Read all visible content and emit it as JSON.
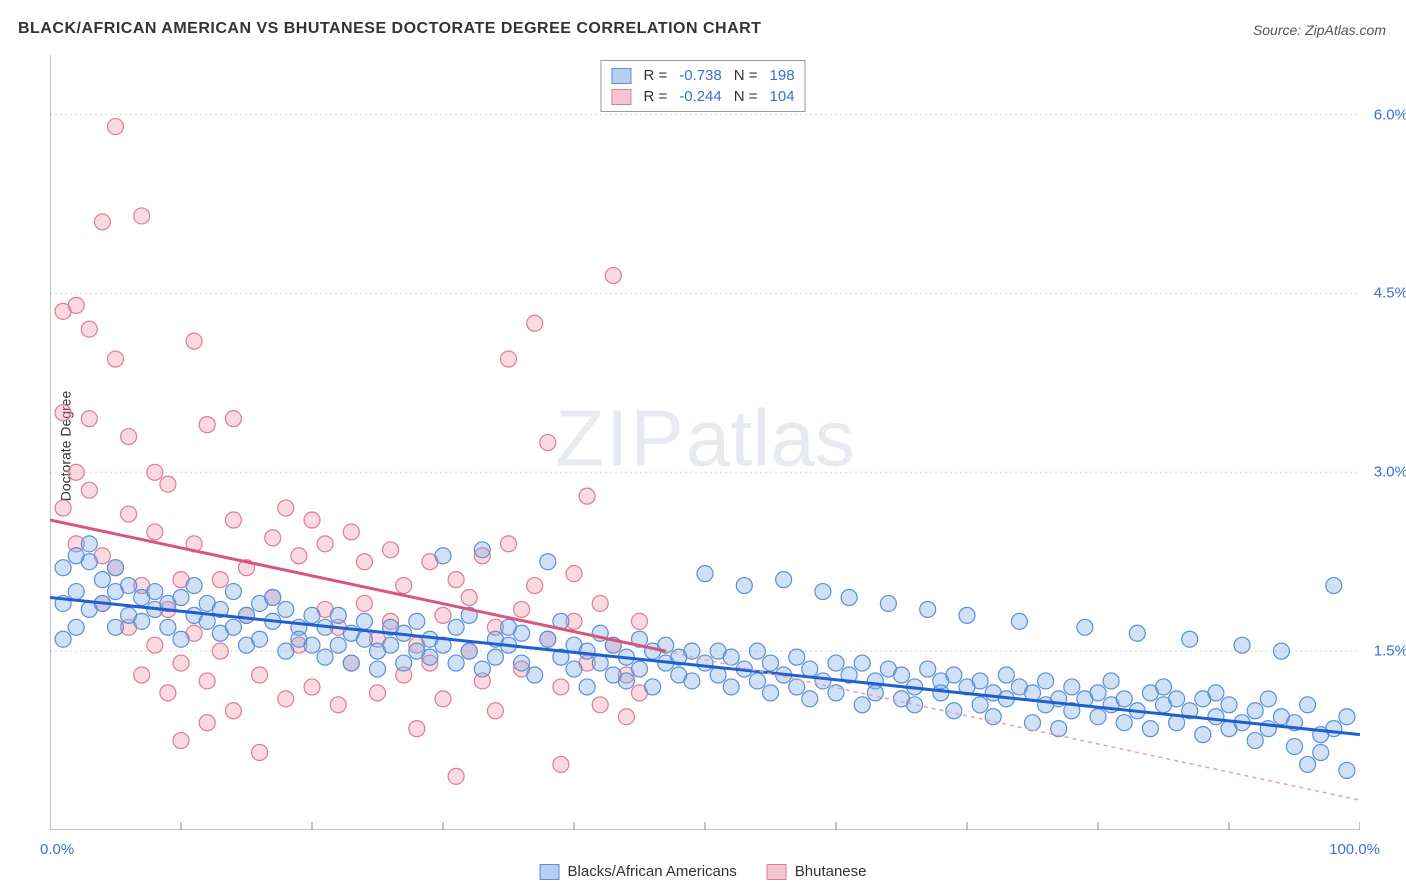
{
  "title": "BLACK/AFRICAN AMERICAN VS BHUTANESE DOCTORATE DEGREE CORRELATION CHART",
  "source": "Source: ZipAtlas.com",
  "ylabel": "Doctorate Degree",
  "watermark": {
    "part1": "ZIP",
    "part2": "atlas"
  },
  "chart": {
    "type": "scatter",
    "background_color": "#ffffff",
    "grid_color": "#d8d8d8",
    "axis_color": "#888888",
    "xlim": [
      0,
      100
    ],
    "ylim": [
      0,
      6.5
    ],
    "x_ticks": [
      0,
      10,
      20,
      30,
      40,
      50,
      60,
      70,
      80,
      90,
      100
    ],
    "x_tick_labels": {
      "0": "0.0%",
      "100": "100.0%"
    },
    "y_ticks": [
      1.5,
      3.0,
      4.5,
      6.0
    ],
    "y_tick_labels": [
      "1.5%",
      "3.0%",
      "4.5%",
      "6.0%"
    ],
    "marker_radius": 8,
    "marker_stroke_width": 1.2,
    "trend_line_width": 3,
    "series": [
      {
        "name": "Blacks/African Americans",
        "key": "blue",
        "fill": "rgba(120,170,230,0.35)",
        "stroke": "#5b8fd6",
        "swatch_fill": "#b8d0f0",
        "swatch_border": "#5b8fd6",
        "r_label": "R =",
        "r_value": "-0.738",
        "n_label": "N =",
        "n_value": "198",
        "trend": {
          "x1": 0,
          "y1": 1.95,
          "x2": 100,
          "y2": 0.8,
          "color": "#1f5fd0",
          "dash": "none"
        },
        "points": [
          [
            1,
            1.6
          ],
          [
            1,
            1.9
          ],
          [
            1,
            2.2
          ],
          [
            2,
            1.7
          ],
          [
            2,
            2.3
          ],
          [
            2,
            2.0
          ],
          [
            3,
            1.85
          ],
          [
            3,
            2.25
          ],
          [
            3,
            2.4
          ],
          [
            4,
            1.9
          ],
          [
            4,
            2.1
          ],
          [
            5,
            1.7
          ],
          [
            5,
            2.0
          ],
          [
            5,
            2.2
          ],
          [
            6,
            1.8
          ],
          [
            6,
            2.05
          ],
          [
            7,
            1.95
          ],
          [
            7,
            1.75
          ],
          [
            8,
            2.0
          ],
          [
            8,
            1.85
          ],
          [
            9,
            1.9
          ],
          [
            9,
            1.7
          ],
          [
            10,
            1.6
          ],
          [
            10,
            1.95
          ],
          [
            11,
            1.8
          ],
          [
            11,
            2.05
          ],
          [
            12,
            1.75
          ],
          [
            12,
            1.9
          ],
          [
            13,
            1.85
          ],
          [
            13,
            1.65
          ],
          [
            14,
            1.7
          ],
          [
            14,
            2.0
          ],
          [
            15,
            1.55
          ],
          [
            15,
            1.8
          ],
          [
            16,
            1.9
          ],
          [
            16,
            1.6
          ],
          [
            17,
            1.75
          ],
          [
            17,
            1.95
          ],
          [
            18,
            1.5
          ],
          [
            18,
            1.85
          ],
          [
            19,
            1.7
          ],
          [
            19,
            1.6
          ],
          [
            20,
            1.8
          ],
          [
            20,
            1.55
          ],
          [
            21,
            1.45
          ],
          [
            21,
            1.7
          ],
          [
            22,
            1.8
          ],
          [
            22,
            1.55
          ],
          [
            23,
            1.4
          ],
          [
            23,
            1.65
          ],
          [
            24,
            1.6
          ],
          [
            24,
            1.75
          ],
          [
            25,
            1.5
          ],
          [
            25,
            1.35
          ],
          [
            26,
            1.7
          ],
          [
            26,
            1.55
          ],
          [
            27,
            1.4
          ],
          [
            27,
            1.65
          ],
          [
            28,
            1.5
          ],
          [
            28,
            1.75
          ],
          [
            29,
            1.45
          ],
          [
            29,
            1.6
          ],
          [
            30,
            2.3
          ],
          [
            30,
            1.55
          ],
          [
            31,
            1.4
          ],
          [
            31,
            1.7
          ],
          [
            32,
            1.5
          ],
          [
            32,
            1.8
          ],
          [
            33,
            1.35
          ],
          [
            33,
            2.35
          ],
          [
            34,
            1.6
          ],
          [
            34,
            1.45
          ],
          [
            35,
            1.7
          ],
          [
            35,
            1.55
          ],
          [
            36,
            1.4
          ],
          [
            36,
            1.65
          ],
          [
            37,
            1.3
          ],
          [
            38,
            1.6
          ],
          [
            38,
            2.25
          ],
          [
            39,
            1.45
          ],
          [
            39,
            1.75
          ],
          [
            40,
            1.35
          ],
          [
            40,
            1.55
          ],
          [
            41,
            1.2
          ],
          [
            41,
            1.5
          ],
          [
            42,
            1.65
          ],
          [
            42,
            1.4
          ],
          [
            43,
            1.3
          ],
          [
            43,
            1.55
          ],
          [
            44,
            1.45
          ],
          [
            44,
            1.25
          ],
          [
            45,
            1.6
          ],
          [
            45,
            1.35
          ],
          [
            46,
            1.5
          ],
          [
            46,
            1.2
          ],
          [
            47,
            1.4
          ],
          [
            47,
            1.55
          ],
          [
            48,
            1.3
          ],
          [
            48,
            1.45
          ],
          [
            49,
            1.25
          ],
          [
            49,
            1.5
          ],
          [
            50,
            1.4
          ],
          [
            50,
            2.15
          ],
          [
            51,
            1.3
          ],
          [
            51,
            1.5
          ],
          [
            52,
            1.2
          ],
          [
            52,
            1.45
          ],
          [
            53,
            1.35
          ],
          [
            53,
            2.05
          ],
          [
            54,
            1.25
          ],
          [
            54,
            1.5
          ],
          [
            55,
            1.15
          ],
          [
            55,
            1.4
          ],
          [
            56,
            1.3
          ],
          [
            56,
            2.1
          ],
          [
            57,
            1.2
          ],
          [
            57,
            1.45
          ],
          [
            58,
            1.1
          ],
          [
            58,
            1.35
          ],
          [
            59,
            2.0
          ],
          [
            59,
            1.25
          ],
          [
            60,
            1.4
          ],
          [
            60,
            1.15
          ],
          [
            61,
            1.3
          ],
          [
            61,
            1.95
          ],
          [
            62,
            1.05
          ],
          [
            62,
            1.4
          ],
          [
            63,
            1.25
          ],
          [
            63,
            1.15
          ],
          [
            64,
            1.35
          ],
          [
            64,
            1.9
          ],
          [
            65,
            1.1
          ],
          [
            65,
            1.3
          ],
          [
            66,
            1.2
          ],
          [
            66,
            1.05
          ],
          [
            67,
            1.35
          ],
          [
            67,
            1.85
          ],
          [
            68,
            1.15
          ],
          [
            68,
            1.25
          ],
          [
            69,
            1.0
          ],
          [
            69,
            1.3
          ],
          [
            70,
            1.2
          ],
          [
            70,
            1.8
          ],
          [
            71,
            1.05
          ],
          [
            71,
            1.25
          ],
          [
            72,
            1.15
          ],
          [
            72,
            0.95
          ],
          [
            73,
            1.3
          ],
          [
            73,
            1.1
          ],
          [
            74,
            1.2
          ],
          [
            74,
            1.75
          ],
          [
            75,
            0.9
          ],
          [
            75,
            1.15
          ],
          [
            76,
            1.05
          ],
          [
            76,
            1.25
          ],
          [
            77,
            1.1
          ],
          [
            77,
            0.85
          ],
          [
            78,
            1.2
          ],
          [
            78,
            1.0
          ],
          [
            79,
            1.7
          ],
          [
            79,
            1.1
          ],
          [
            80,
            0.95
          ],
          [
            80,
            1.15
          ],
          [
            81,
            1.05
          ],
          [
            81,
            1.25
          ],
          [
            82,
            0.9
          ],
          [
            82,
            1.1
          ],
          [
            83,
            1.0
          ],
          [
            83,
            1.65
          ],
          [
            84,
            1.15
          ],
          [
            84,
            0.85
          ],
          [
            85,
            1.05
          ],
          [
            85,
            1.2
          ],
          [
            86,
            0.9
          ],
          [
            86,
            1.1
          ],
          [
            87,
            1.0
          ],
          [
            87,
            1.6
          ],
          [
            88,
            0.8
          ],
          [
            88,
            1.1
          ],
          [
            89,
            0.95
          ],
          [
            89,
            1.15
          ],
          [
            90,
            0.85
          ],
          [
            90,
            1.05
          ],
          [
            91,
            1.55
          ],
          [
            91,
            0.9
          ],
          [
            92,
            1.0
          ],
          [
            92,
            0.75
          ],
          [
            93,
            1.1
          ],
          [
            93,
            0.85
          ],
          [
            94,
            0.95
          ],
          [
            94,
            1.5
          ],
          [
            95,
            0.7
          ],
          [
            95,
            0.9
          ],
          [
            96,
            1.05
          ],
          [
            96,
            0.55
          ],
          [
            97,
            0.8
          ],
          [
            97,
            0.65
          ],
          [
            98,
            2.05
          ],
          [
            98,
            0.85
          ],
          [
            99,
            0.5
          ],
          [
            99,
            0.95
          ]
        ]
      },
      {
        "name": "Bhutanese",
        "key": "pink",
        "fill": "rgba(240,150,170,0.35)",
        "stroke": "#e07a95",
        "swatch_fill": "#f5c5d2",
        "swatch_border": "#e07a95",
        "r_label": "R =",
        "r_value": "-0.244",
        "n_label": "N =",
        "n_value": "104",
        "trend": {
          "x1": 0,
          "y1": 2.6,
          "x2": 47,
          "y2": 1.5,
          "color": "#d8567a",
          "dash": "none"
        },
        "trend_ext": {
          "x1": 47,
          "y1": 1.5,
          "x2": 100,
          "y2": 0.25,
          "color": "#e8a0b0",
          "dash": "4,4"
        },
        "points": [
          [
            1,
            2.7
          ],
          [
            1,
            4.35
          ],
          [
            1,
            3.5
          ],
          [
            2,
            3.0
          ],
          [
            2,
            4.4
          ],
          [
            2,
            2.4
          ],
          [
            3,
            2.85
          ],
          [
            3,
            3.45
          ],
          [
            3,
            4.2
          ],
          [
            4,
            5.1
          ],
          [
            4,
            2.3
          ],
          [
            4,
            1.9
          ],
          [
            5,
            2.2
          ],
          [
            5,
            3.95
          ],
          [
            5,
            5.9
          ],
          [
            6,
            2.65
          ],
          [
            6,
            1.7
          ],
          [
            6,
            3.3
          ],
          [
            7,
            5.15
          ],
          [
            7,
            2.05
          ],
          [
            7,
            1.3
          ],
          [
            8,
            2.5
          ],
          [
            8,
            3.0
          ],
          [
            8,
            1.55
          ],
          [
            9,
            1.85
          ],
          [
            9,
            2.9
          ],
          [
            9,
            1.15
          ],
          [
            10,
            0.75
          ],
          [
            10,
            2.1
          ],
          [
            10,
            1.4
          ],
          [
            11,
            4.1
          ],
          [
            11,
            1.65
          ],
          [
            11,
            2.4
          ],
          [
            12,
            3.4
          ],
          [
            12,
            1.25
          ],
          [
            12,
            0.9
          ],
          [
            13,
            2.1
          ],
          [
            13,
            1.5
          ],
          [
            14,
            3.45
          ],
          [
            14,
            2.6
          ],
          [
            14,
            1.0
          ],
          [
            15,
            1.8
          ],
          [
            15,
            2.2
          ],
          [
            16,
            1.3
          ],
          [
            16,
            0.65
          ],
          [
            17,
            2.45
          ],
          [
            17,
            1.95
          ],
          [
            18,
            1.1
          ],
          [
            18,
            2.7
          ],
          [
            19,
            1.55
          ],
          [
            19,
            2.3
          ],
          [
            20,
            1.2
          ],
          [
            20,
            2.6
          ],
          [
            21,
            1.85
          ],
          [
            21,
            2.4
          ],
          [
            22,
            1.05
          ],
          [
            22,
            1.7
          ],
          [
            23,
            2.5
          ],
          [
            23,
            1.4
          ],
          [
            24,
            1.9
          ],
          [
            24,
            2.25
          ],
          [
            25,
            1.15
          ],
          [
            25,
            1.6
          ],
          [
            26,
            2.35
          ],
          [
            26,
            1.75
          ],
          [
            27,
            1.3
          ],
          [
            27,
            2.05
          ],
          [
            28,
            1.55
          ],
          [
            28,
            0.85
          ],
          [
            29,
            2.25
          ],
          [
            29,
            1.4
          ],
          [
            30,
            1.8
          ],
          [
            30,
            1.1
          ],
          [
            31,
            0.45
          ],
          [
            31,
            2.1
          ],
          [
            32,
            1.5
          ],
          [
            32,
            1.95
          ],
          [
            33,
            1.25
          ],
          [
            33,
            2.3
          ],
          [
            34,
            1.7
          ],
          [
            34,
            1.0
          ],
          [
            35,
            2.4
          ],
          [
            35,
            3.95
          ],
          [
            36,
            1.35
          ],
          [
            36,
            1.85
          ],
          [
            37,
            2.05
          ],
          [
            37,
            4.25
          ],
          [
            38,
            1.6
          ],
          [
            38,
            3.25
          ],
          [
            39,
            1.2
          ],
          [
            39,
            0.55
          ],
          [
            40,
            1.75
          ],
          [
            40,
            2.15
          ],
          [
            41,
            1.4
          ],
          [
            41,
            2.8
          ],
          [
            42,
            1.05
          ],
          [
            42,
            1.9
          ],
          [
            43,
            1.55
          ],
          [
            43,
            4.65
          ],
          [
            44,
            1.3
          ],
          [
            44,
            0.95
          ],
          [
            45,
            1.75
          ],
          [
            45,
            1.15
          ]
        ]
      }
    ]
  },
  "bottom_legend": [
    {
      "label": "Blacks/African Americans",
      "fill": "#b8d0f0",
      "border": "#5b8fd6"
    },
    {
      "label": "Bhutanese",
      "fill": "#f5c5d2",
      "border": "#e07a95"
    }
  ]
}
